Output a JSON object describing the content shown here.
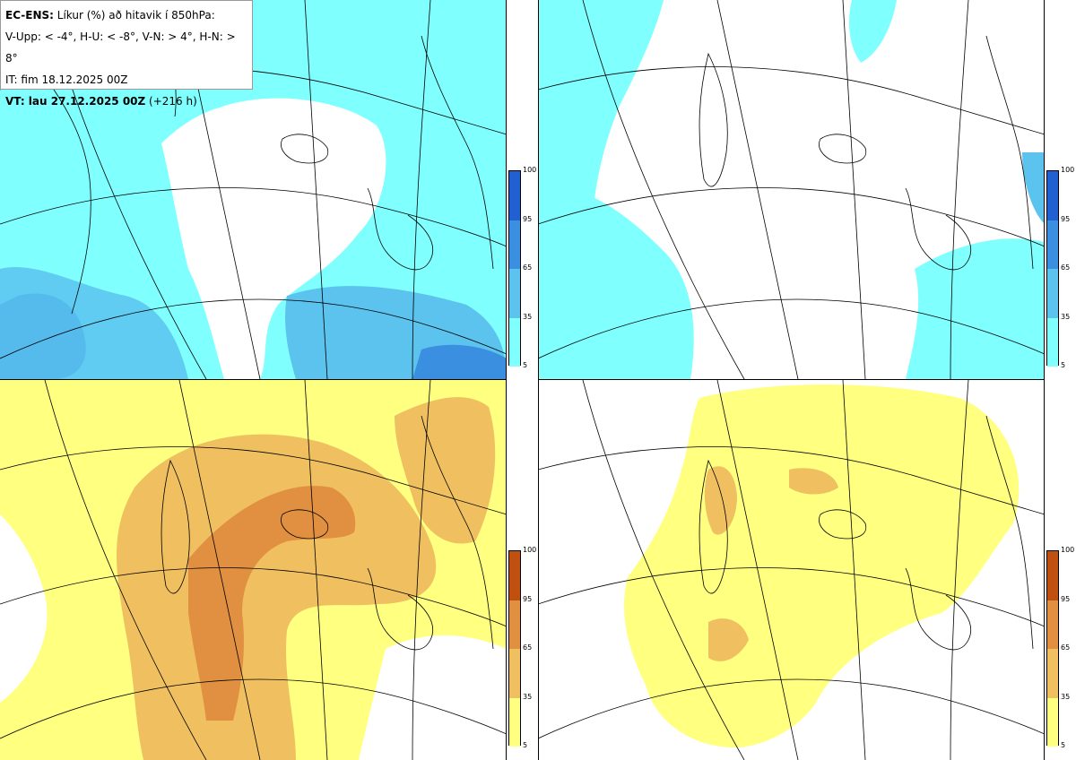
{
  "title": {
    "line1_bold": "EC-ENS:",
    "line1_rest": " Líkur (%) að hitavik í 850hPa:",
    "line2": "V-Upp: < -4°, H-U: < -8°, V-N: > 4°, H-N: > 8°",
    "line3": "IT: fim 18.12.2025 00Z",
    "line4_bold": "VT: lau 27.12.2025 00Z",
    "line4_rest": " (+216 h)"
  },
  "colorbar_ticks": [
    "100",
    "95",
    "65",
    "35",
    "5"
  ],
  "colors": {
    "cold": [
      "#80ffff",
      "#5bc3ee",
      "#3a8fe0",
      "#2060d0"
    ],
    "warm": [
      "#ffff80",
      "#f0c060",
      "#e09040",
      "#c05010"
    ]
  },
  "panels": [
    {
      "id": "upper-left",
      "scheme": "cold"
    },
    {
      "id": "upper-right",
      "scheme": "cold"
    },
    {
      "id": "lower-left",
      "scheme": "warm"
    },
    {
      "id": "lower-right",
      "scheme": "warm"
    }
  ]
}
